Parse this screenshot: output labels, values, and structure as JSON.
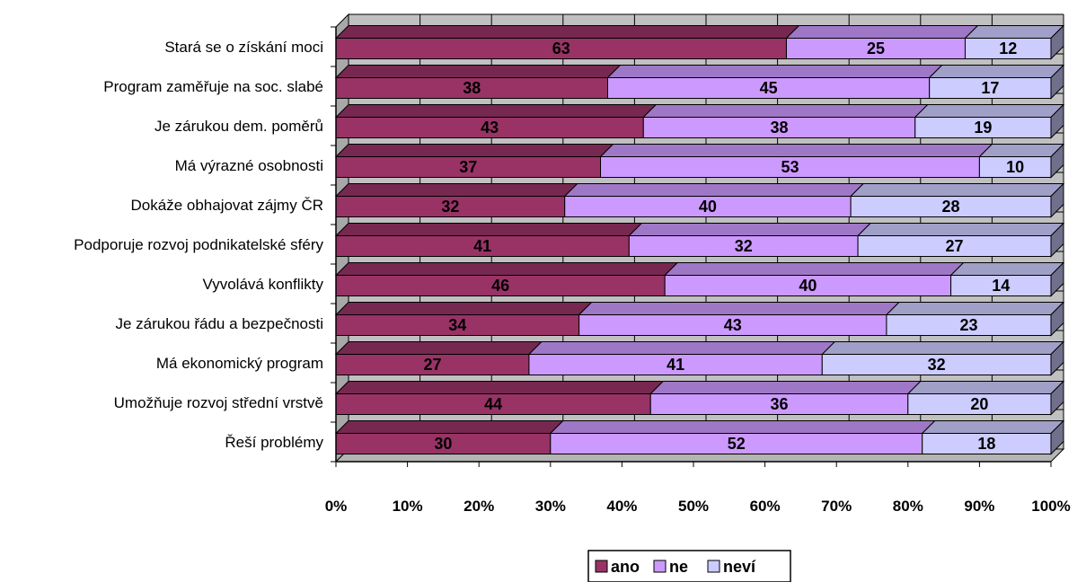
{
  "chart_data": {
    "type": "bar",
    "orientation": "horizontal",
    "stacked": "percent",
    "three_d": true,
    "categories": [
      "Stará se o získání moci",
      "Program zaměřuje na soc. slabé",
      "Je zárukou dem. poměrů",
      "Má výrazné osobnosti",
      "Dokáže obhajovat zájmy ČR",
      "Podporuje rozvoj podnikatelské sféry",
      "Vyvolává konflikty",
      "Je zárukou řádu a bezpečnosti",
      "Má ekonomický program",
      "Umožňuje rozvoj střední vrstvě",
      "Řeší problémy"
    ],
    "series": [
      {
        "name": "ano",
        "color": "#993366",
        "values": [
          63,
          38,
          43,
          37,
          32,
          41,
          46,
          34,
          27,
          44,
          30
        ]
      },
      {
        "name": "ne",
        "color": "#cc99ff",
        "values": [
          25,
          45,
          38,
          53,
          40,
          32,
          40,
          43,
          41,
          36,
          52
        ]
      },
      {
        "name": "neví",
        "color": "#ccccff",
        "values": [
          12,
          17,
          19,
          10,
          28,
          27,
          14,
          23,
          32,
          20,
          18
        ]
      }
    ],
    "xticks": [
      "0%",
      "10%",
      "20%",
      "30%",
      "40%",
      "50%",
      "60%",
      "70%",
      "80%",
      "90%",
      "100%"
    ],
    "xlim": [
      0,
      100
    ],
    "grid": true,
    "legend_position": "bottom",
    "title": "",
    "xlabel": "",
    "ylabel": ""
  }
}
